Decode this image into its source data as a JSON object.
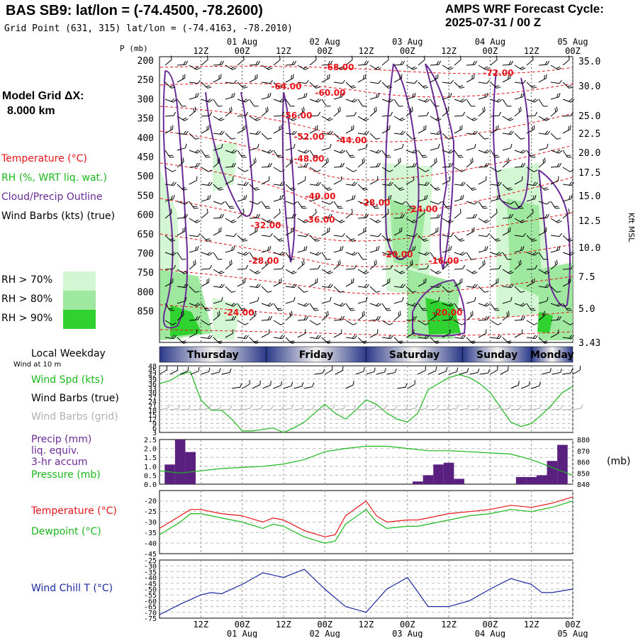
{
  "header": {
    "station": "BAS SB9:  lat/lon = (-74.4500, -78.2600)",
    "grid_point": "Grid Point (631, 315) lat/lon = (-74.4163, -78.2010)",
    "cycle_line1": "AMPS WRF Forecast Cycle:",
    "cycle_line2": "2025-07-31 / 00  Z",
    "model_grid_line1": "Model Grid ΔX:",
    "model_grid_line2": "8.000 km"
  },
  "legend": {
    "temperature": "Temperature (°C)",
    "rh": "RH (%, WRT liq. wat.)",
    "cloud": "Cloud/Precip Outline",
    "wind_barbs": "Wind Barbs (kts) (true)",
    "rh70": "RH > 70%",
    "rh80": "RH > 80%",
    "rh90": "RH > 90%",
    "colors": {
      "temperature": "#e8141a",
      "rh": "#1bb81b",
      "cloud": "#6a2a96",
      "rh70": "#d2f7d2",
      "rh80": "#9fe89f",
      "rh90": "#2fd22f"
    }
  },
  "panel_labels": {
    "local_weekday": "Local Weekday",
    "wind_at_10m": "Wind at 10 m",
    "wind_spd": "Wind Spd (kts)",
    "wind_barbs_true": "Wind Barbs (true)",
    "wind_barbs_grid": "Wind Barbs (grid)",
    "precip": "Precip (mm)",
    "liq_equiv": "liq. equiv.",
    "accum": "3-hr accum",
    "pressure": "Pressure (mb)",
    "pressure_unit": "(mb)",
    "temperature": "Temperature (°C)",
    "dewpoint": "Dewpoint (°C)",
    "wind_chill": "Wind Chill T (°C)"
  },
  "time_axis": {
    "hour_labels": [
      "12Z",
      "00Z",
      "12Z",
      "00Z",
      "12Z",
      "00Z",
      "12Z",
      "00Z",
      "12Z",
      "00Z"
    ],
    "date_labels": [
      "01 Aug",
      "02 Aug",
      "03 Aug",
      "04 Aug",
      "05 Aug"
    ],
    "weekdays": [
      "Thursday",
      "Friday",
      "Saturday",
      "Sunday",
      "Monday"
    ]
  },
  "chart_data": [
    {
      "type": "heatmap",
      "name": "cross-section",
      "pressure_axis_label": "P (mb)",
      "pressure_ticks": [
        200,
        250,
        300,
        350,
        400,
        450,
        500,
        550,
        600,
        650,
        700,
        750,
        800,
        850
      ],
      "height_ticks": [
        "35.0",
        "30.0",
        "25.0",
        "22.5",
        "20.0",
        "17.5",
        "15.0",
        "12.5",
        "10.0",
        "7.5",
        "5.0",
        "3.43"
      ],
      "height_axis_label": "Kft MSL",
      "temperature_contour_labels": [
        "-68.00",
        "-64.00",
        "-60.00",
        "-72.00",
        "-56.00",
        "-52.00",
        "-44.00",
        "-48.00",
        "-40.00",
        "-28.00",
        "-24.00",
        "-36.00",
        "-32.00",
        "-20.00",
        "-16.00",
        "-28.00",
        "-24.00",
        "-20.00"
      ]
    },
    {
      "type": "line",
      "name": "wind-speed",
      "ylim": [
        3,
        48
      ],
      "y_ticks": [
        "48",
        "45",
        "42",
        "39",
        "36",
        "33",
        "30",
        "27",
        "24",
        "21",
        "18",
        "15",
        "12",
        "9",
        "6",
        "3"
      ],
      "x_hours": [
        0,
        3,
        6,
        9,
        12,
        15,
        18,
        21,
        24,
        27,
        30,
        33,
        36,
        39,
        42,
        45,
        48,
        51,
        54,
        57,
        60,
        63,
        66,
        69,
        72,
        75,
        78,
        81,
        84,
        87,
        90,
        93,
        96,
        99,
        102,
        105,
        108,
        111,
        114,
        117,
        120
      ],
      "series": [
        {
          "values": [
            36,
            38,
            42,
            44,
            25,
            18,
            18,
            12,
            4,
            4,
            5,
            6,
            3,
            6,
            10,
            16,
            22,
            16,
            12,
            18,
            25,
            22,
            16,
            12,
            10,
            16,
            32,
            36,
            40,
            42,
            40,
            36,
            30,
            20,
            10,
            7,
            9,
            15,
            22,
            30,
            34
          ]
        }
      ]
    },
    {
      "type": "bar",
      "name": "precip-pressure",
      "precip_ylim": [
        0,
        2.5
      ],
      "precip_ticks": [
        "2.5",
        "2.0",
        "1.5",
        "1.0",
        "0.5",
        "0.0"
      ],
      "pressure_ylim": [
        840,
        880
      ],
      "pressure_ticks": [
        "880",
        "870",
        "860",
        "850",
        "840"
      ],
      "precip_bars": [
        {
          "hour": 3,
          "value": 1.1
        },
        {
          "hour": 6,
          "value": 2.5
        },
        {
          "hour": 9,
          "value": 1.8
        },
        {
          "hour": 75,
          "value": 0.15
        },
        {
          "hour": 78,
          "value": 0.5
        },
        {
          "hour": 81,
          "value": 1.1
        },
        {
          "hour": 84,
          "value": 1.2
        },
        {
          "hour": 87,
          "value": 0.3
        },
        {
          "hour": 105,
          "value": 0.4
        },
        {
          "hour": 108,
          "value": 0.4
        },
        {
          "hour": 111,
          "value": 0.5
        },
        {
          "hour": 114,
          "value": 1.3
        },
        {
          "hour": 117,
          "value": 2.2
        }
      ],
      "pressure_series": {
        "x_hours": [
          0,
          6,
          12,
          18,
          24,
          30,
          36,
          42,
          48,
          54,
          60,
          66,
          72,
          78,
          84,
          90,
          96,
          102,
          108,
          114,
          120
        ],
        "values": [
          852,
          850,
          852,
          854,
          855,
          856,
          858,
          862,
          869,
          872,
          874,
          874,
          872,
          870,
          870,
          869,
          868,
          867,
          862,
          855,
          848
        ]
      }
    },
    {
      "type": "line",
      "name": "temperature-dewpoint",
      "ylim": [
        -45,
        -15
      ],
      "y_ticks": [
        "-20",
        "-25",
        "-30",
        "-35",
        "-40",
        "-45"
      ],
      "x_hours": [
        0,
        6,
        9,
        12,
        15,
        18,
        24,
        30,
        33,
        36,
        42,
        48,
        51,
        54,
        60,
        63,
        66,
        72,
        75,
        78,
        84,
        90,
        96,
        102,
        108,
        114,
        120
      ],
      "series": [
        {
          "name": "Temperature",
          "values": [
            -33,
            -27,
            -24,
            -24,
            -25,
            -26,
            -27,
            -30,
            -28,
            -29,
            -34,
            -37,
            -36,
            -27,
            -20,
            -27,
            -30,
            -29,
            -29,
            -28,
            -26,
            -25,
            -24,
            -22,
            -23,
            -21,
            -18
          ]
        },
        {
          "name": "Dewpoint",
          "values": [
            -36,
            -30,
            -26,
            -26,
            -27,
            -28,
            -30,
            -33,
            -31,
            -32,
            -37,
            -40,
            -39,
            -31,
            -24,
            -30,
            -33,
            -32,
            -32,
            -31,
            -29,
            -27,
            -26,
            -24,
            -25,
            -23,
            -20
          ]
        }
      ]
    },
    {
      "type": "line",
      "name": "wind-chill",
      "ylim": [
        -75,
        -25
      ],
      "y_ticks": [
        "-25",
        "-30",
        "-35",
        "-40",
        "-45",
        "-50",
        "-55",
        "-60",
        "-65",
        "-70",
        "-75"
      ],
      "x_hours": [
        0,
        6,
        12,
        15,
        18,
        24,
        30,
        36,
        42,
        48,
        54,
        60,
        63,
        66,
        72,
        78,
        84,
        90,
        96,
        102,
        108,
        111,
        114,
        120
      ],
      "series": [
        {
          "name": "Wind Chill",
          "values": [
            -72,
            -63,
            -55,
            -53,
            -54,
            -46,
            -36,
            -40,
            -33,
            -50,
            -65,
            -70,
            -60,
            -50,
            -40,
            -65,
            -65,
            -60,
            -50,
            -41,
            -46,
            -53,
            -53,
            -50
          ]
        }
      ]
    }
  ]
}
